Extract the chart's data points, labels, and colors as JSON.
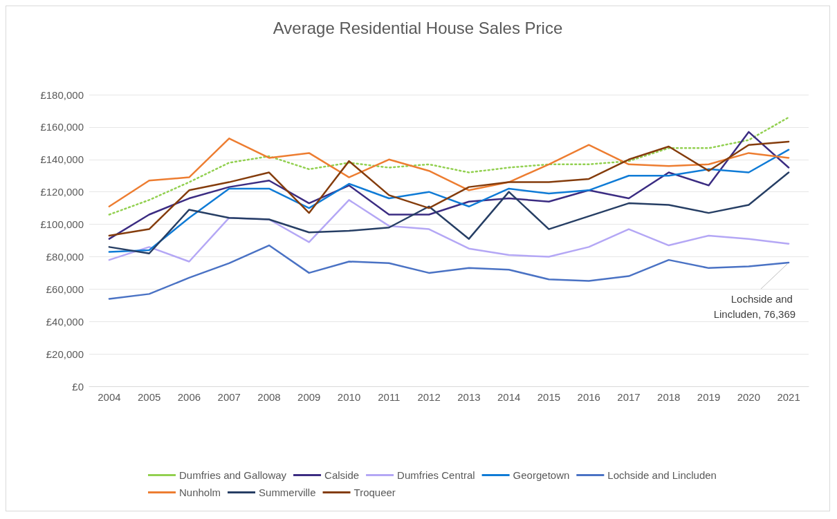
{
  "chart_data": {
    "type": "line",
    "title": "Average Residential House Sales Price",
    "categories": [
      "2004",
      "2005",
      "2006",
      "2007",
      "2008",
      "2009",
      "2010",
      "2011",
      "2012",
      "2013",
      "2014",
      "2015",
      "2016",
      "2017",
      "2018",
      "2019",
      "2020",
      "2021"
    ],
    "series": [
      {
        "name": "Dumfries and Galloway",
        "color": "#92d050",
        "line_style": "dotted",
        "values": [
          106000,
          115000,
          126000,
          138000,
          142000,
          134000,
          138000,
          135000,
          137000,
          132000,
          135000,
          137000,
          137000,
          139000,
          147000,
          147000,
          152000,
          166000
        ]
      },
      {
        "name": "Calside",
        "color": "#3b2c82",
        "values": [
          91000,
          106000,
          116000,
          123000,
          127000,
          113000,
          124000,
          106000,
          106000,
          114000,
          116000,
          114000,
          121000,
          116000,
          132000,
          124000,
          157000,
          135000
        ]
      },
      {
        "name": "Dumfries Central",
        "color": "#b4a7f5",
        "values": [
          78000,
          86000,
          77000,
          104000,
          103000,
          89000,
          115000,
          99000,
          97000,
          85000,
          81000,
          80000,
          86000,
          97000,
          87000,
          93000,
          91000,
          88000
        ]
      },
      {
        "name": "Georgetown",
        "color": "#0f7bd6",
        "values": [
          83000,
          84000,
          104000,
          122000,
          122000,
          110000,
          125000,
          116000,
          120000,
          111000,
          122000,
          119000,
          121000,
          130000,
          130000,
          134000,
          132000,
          146000
        ]
      },
      {
        "name": "Lochside and Lincluden",
        "color": "#4a72c4",
        "values": [
          54000,
          57000,
          67000,
          76000,
          87000,
          70000,
          77000,
          76000,
          70000,
          73000,
          72000,
          66000,
          65000,
          68000,
          78000,
          73000,
          74000,
          76369
        ]
      },
      {
        "name": "Nunholm",
        "color": "#ed7d31",
        "values": [
          111000,
          127000,
          129000,
          153000,
          141000,
          144000,
          129000,
          140000,
          133000,
          121000,
          126000,
          137000,
          149000,
          137000,
          136000,
          137000,
          144000,
          141000
        ]
      },
      {
        "name": "Summerville",
        "color": "#263e64",
        "values": [
          86000,
          82000,
          109000,
          104000,
          103000,
          95000,
          96000,
          98000,
          111000,
          91000,
          120000,
          97000,
          105000,
          113000,
          112000,
          107000,
          112000,
          132000
        ]
      },
      {
        "name": "Troqueer",
        "color": "#843c0c",
        "values": [
          93000,
          97000,
          121000,
          126000,
          132000,
          107000,
          139000,
          118000,
          110000,
          123000,
          126000,
          126000,
          128000,
          140000,
          148000,
          133000,
          149000,
          151000
        ]
      }
    ],
    "ylim": [
      0,
      180000
    ],
    "yticks": [
      {
        "value": 0,
        "label": "£0"
      },
      {
        "value": 20000,
        "label": "£20,000"
      },
      {
        "value": 40000,
        "label": "£40,000"
      },
      {
        "value": 60000,
        "label": "£60,000"
      },
      {
        "value": 80000,
        "label": "£80,000"
      },
      {
        "value": 100000,
        "label": "£100,000"
      },
      {
        "value": 120000,
        "label": "£120,000"
      },
      {
        "value": 140000,
        "label": "£140,000"
      },
      {
        "value": 160000,
        "label": "£160,000"
      },
      {
        "value": 180000,
        "label": "£180,000"
      }
    ],
    "annotations": [
      {
        "text": "Lochside and Lincluden, 76,369",
        "x": "2021",
        "y": 76369
      }
    ],
    "grid": "y",
    "legend": "bottom",
    "marker": "none",
    "line_style": "solid"
  }
}
